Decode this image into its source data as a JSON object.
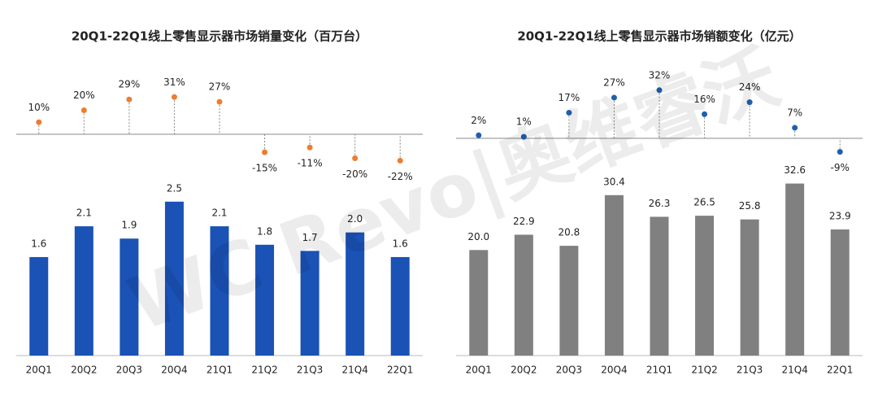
{
  "watermark": "WC Revo|奥维睿沃",
  "chart_data": [
    {
      "type": "bar",
      "title": "20Q1-22Q1线上零售显示器市场销量变化（百万台）",
      "categories": [
        "20Q1",
        "20Q2",
        "20Q3",
        "20Q4",
        "21Q1",
        "21Q2",
        "21Q3",
        "21Q4",
        "22Q1"
      ],
      "series": [
        {
          "type": "bar",
          "color": "#1a52b5",
          "ylim": [
            0,
            3
          ],
          "values": [
            1.6,
            2.1,
            1.9,
            2.5,
            2.1,
            1.8,
            1.7,
            2.0,
            1.6
          ],
          "value_labels": [
            "1.6",
            "2.1",
            "1.9",
            "2.5",
            "2.1",
            "1.8",
            "1.7",
            "2.0",
            "1.6"
          ]
        },
        {
          "type": "lollipop",
          "color": "#ed7d31",
          "ylim": [
            -40,
            40
          ],
          "values": [
            10,
            20,
            29,
            31,
            27,
            -15,
            -11,
            -20,
            -22
          ],
          "value_labels": [
            "10%",
            "20%",
            "29%",
            "31%",
            "27%",
            "-15%",
            "-11%",
            "-20%",
            "-22%"
          ]
        }
      ]
    },
    {
      "type": "bar",
      "title": "20Q1-22Q1线上零售显示器市场销额变化（亿元）",
      "categories": [
        "20Q1",
        "20Q2",
        "20Q3",
        "20Q4",
        "21Q1",
        "21Q2",
        "21Q3",
        "21Q4",
        "22Q1"
      ],
      "series": [
        {
          "type": "bar",
          "color": "#808080",
          "ylim": [
            0,
            35
          ],
          "values": [
            20.0,
            22.9,
            20.8,
            30.4,
            26.3,
            26.5,
            25.8,
            32.6,
            23.9
          ],
          "value_labels": [
            "20.0",
            "22.9",
            "20.8",
            "30.4",
            "26.3",
            "26.5",
            "25.8",
            "32.6",
            "23.9"
          ]
        },
        {
          "type": "lollipop",
          "color": "#1f5fb0",
          "ylim": [
            -40,
            40
          ],
          "values": [
            2,
            1,
            17,
            27,
            32,
            16,
            24,
            7,
            -9
          ],
          "value_labels": [
            "2%",
            "1%",
            "17%",
            "27%",
            "32%",
            "16%",
            "24%",
            "7%",
            "-9%"
          ]
        }
      ]
    }
  ]
}
